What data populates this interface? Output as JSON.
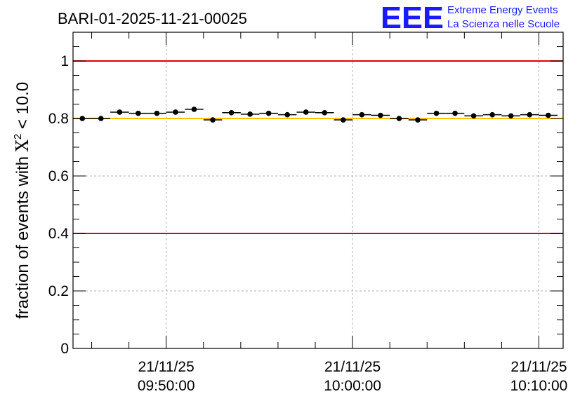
{
  "chart_data": {
    "type": "scatter",
    "title": "BARI-01-2025-11-21-00025",
    "ylabel_prefix": "fraction of events with ",
    "ylabel_symbol": "X",
    "ylabel_superscript": "2",
    "ylabel_suffix": " < 10.0",
    "xlabel": "",
    "ylim": [
      0,
      1.1
    ],
    "xlim_minutes": [
      -2.5,
      23.8
    ],
    "y_ticks": [
      0,
      0.2,
      0.4,
      0.6,
      0.8,
      1
    ],
    "y_tick_labels": [
      "0",
      "0.2",
      "0.4",
      "0.6",
      "0.8",
      "1"
    ],
    "x_ticks": [
      {
        "minutes": 2.5,
        "date": "21/11/25",
        "time": "09:50:00"
      },
      {
        "minutes": 12.5,
        "date": "21/11/25",
        "time": "10:00:00"
      },
      {
        "minutes": 22.5,
        "date": "21/11/25",
        "time": "10:10:00"
      }
    ],
    "bin_width_minutes": 1,
    "reference_lines": [
      {
        "y": 1.0,
        "color": "#e00000"
      },
      {
        "y": 0.4,
        "color": "#e00000"
      },
      {
        "y": 0.8,
        "color": "#ffbf00"
      }
    ],
    "series": [
      {
        "name": "fraction",
        "color": "#000000",
        "points": [
          {
            "x": -2.0,
            "y": 0.8
          },
          {
            "x": -1.0,
            "y": 0.8
          },
          {
            "x": 0.0,
            "y": 0.822
          },
          {
            "x": 1.0,
            "y": 0.818
          },
          {
            "x": 2.0,
            "y": 0.818
          },
          {
            "x": 3.0,
            "y": 0.822
          },
          {
            "x": 4.0,
            "y": 0.832
          },
          {
            "x": 5.0,
            "y": 0.795
          },
          {
            "x": 6.0,
            "y": 0.82
          },
          {
            "x": 7.0,
            "y": 0.815
          },
          {
            "x": 8.0,
            "y": 0.818
          },
          {
            "x": 9.0,
            "y": 0.813
          },
          {
            "x": 10.0,
            "y": 0.822
          },
          {
            "x": 11.0,
            "y": 0.82
          },
          {
            "x": 12.0,
            "y": 0.795
          },
          {
            "x": 13.0,
            "y": 0.813
          },
          {
            "x": 14.0,
            "y": 0.811
          },
          {
            "x": 15.0,
            "y": 0.8
          },
          {
            "x": 16.0,
            "y": 0.795
          },
          {
            "x": 17.0,
            "y": 0.818
          },
          {
            "x": 18.0,
            "y": 0.818
          },
          {
            "x": 19.0,
            "y": 0.809
          },
          {
            "x": 20.0,
            "y": 0.813
          },
          {
            "x": 21.0,
            "y": 0.809
          },
          {
            "x": 22.0,
            "y": 0.813
          },
          {
            "x": 23.0,
            "y": 0.811
          }
        ]
      }
    ]
  },
  "logo": {
    "mark": "EEE",
    "line1": "Extreme Energy Events",
    "line2": "La Scienza nelle Scuole"
  }
}
